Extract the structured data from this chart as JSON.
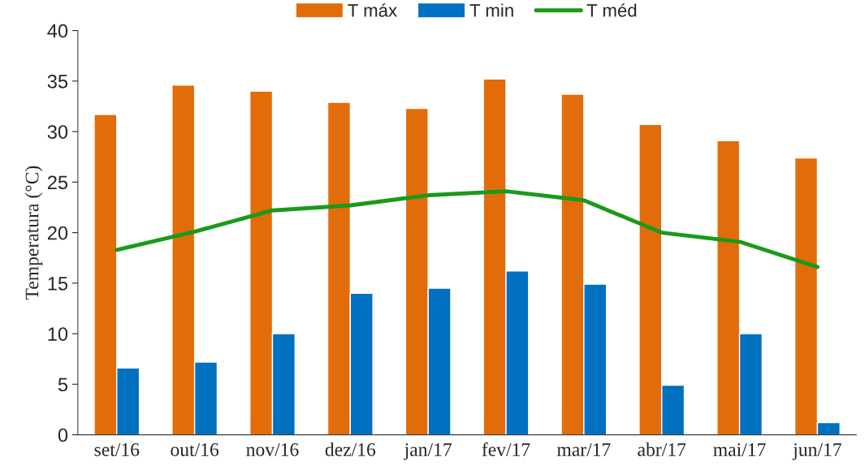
{
  "chart_data": {
    "type": "bar",
    "ylabel": "Temperatura (°C)",
    "categories": [
      "set/16",
      "out/16",
      "nov/16",
      "dez/16",
      "jan/17",
      "fev/17",
      "mar/17",
      "abr/17",
      "mai/17",
      "jun/17"
    ],
    "series": [
      {
        "name": "T máx",
        "color": "#e36c0a",
        "values": [
          31.7,
          34.6,
          34.0,
          32.9,
          32.3,
          35.2,
          33.7,
          30.7,
          29.1,
          27.4
        ]
      },
      {
        "name": "T min",
        "color": "#0070c0",
        "values": [
          6.6,
          7.2,
          10.0,
          14.0,
          14.5,
          16.2,
          14.9,
          4.9,
          10.0,
          1.2
        ]
      },
      {
        "name": "T méd",
        "type": "line",
        "color": "#1a9a1a",
        "values": [
          18.3,
          20.1,
          22.2,
          22.7,
          23.7,
          24.1,
          23.2,
          20.0,
          19.1,
          16.6
        ]
      }
    ],
    "ylim": [
      0,
      40
    ],
    "yticks": [
      0,
      5,
      10,
      15,
      20,
      25,
      30,
      35,
      40
    ],
    "grid": false,
    "legend": "top",
    "marker": "none"
  }
}
